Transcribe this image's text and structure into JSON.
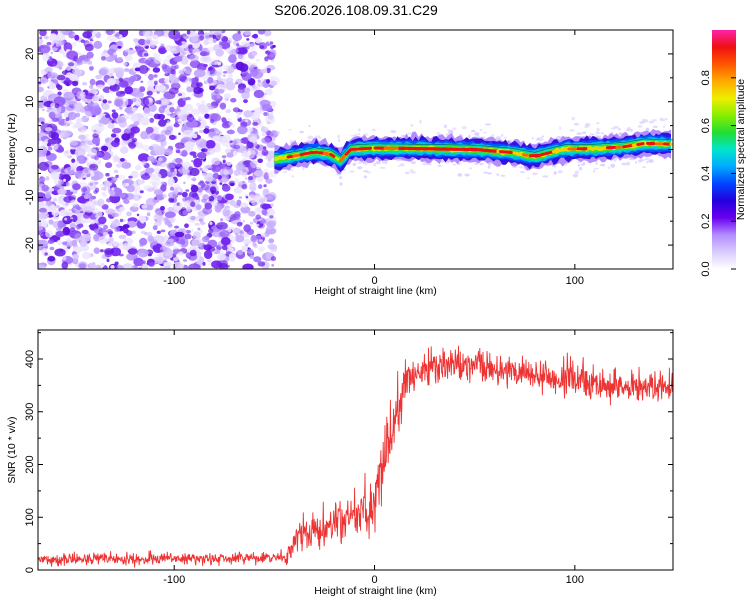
{
  "page_title": "S206.2026.108.09.31.C29",
  "colors": {
    "snr_line": "#ee3333",
    "noise_points": "#7a22ee",
    "frame": "#000000"
  },
  "chart_data": [
    {
      "id": "spectrogram",
      "type": "heatmap",
      "title": "S206.2026.108.09.31.C29",
      "xlabel": "Height of straight line (km)",
      "ylabel": "Frequency (Hz)",
      "xlim": [
        -168,
        149
      ],
      "ylim": [
        -25,
        25
      ],
      "xticks": [
        -100,
        0,
        100
      ],
      "xtick_labels": [
        "-100",
        "0",
        "100"
      ],
      "yticks": [
        -20,
        -10,
        0,
        10,
        20
      ],
      "ytick_labels": [
        "-20",
        "-10",
        "0",
        "10",
        "20"
      ],
      "noise_region_x": [
        -168,
        -50
      ],
      "signal_start_x": -50,
      "signal_center_frequency": [
        {
          "x": -50,
          "f": -2
        },
        {
          "x": -45,
          "f": -1.7
        },
        {
          "x": -38,
          "f": -1.2
        },
        {
          "x": -30,
          "f": -0.5
        },
        {
          "x": -22,
          "f": -1.0
        },
        {
          "x": -17,
          "f": -2.3
        },
        {
          "x": -12,
          "f": 0
        },
        {
          "x": 0,
          "f": 0.3
        },
        {
          "x": 20,
          "f": 0.2
        },
        {
          "x": 50,
          "f": 0
        },
        {
          "x": 68,
          "f": -0.6
        },
        {
          "x": 80,
          "f": -1.5
        },
        {
          "x": 86,
          "f": -0.8
        },
        {
          "x": 95,
          "f": 0.1
        },
        {
          "x": 110,
          "f": 0.2
        },
        {
          "x": 125,
          "f": 0.6
        },
        {
          "x": 135,
          "f": 1.3
        },
        {
          "x": 149,
          "f": 1.1
        }
      ],
      "colorbar": {
        "label": "Normalized spectral amplitude",
        "range": [
          0.0,
          1.0
        ],
        "ticks": [
          0.0,
          0.2,
          0.4,
          0.6,
          0.8
        ],
        "tick_labels": [
          "0.0",
          "0.2",
          "0.4",
          "0.6",
          "0.8"
        ],
        "colormap": [
          "#ffffff",
          "#d9ccff",
          "#b38cff",
          "#6a00ee",
          "#2200dd",
          "#0044ff",
          "#00aaff",
          "#00e5cc",
          "#22dd33",
          "#88ee00",
          "#eeee00",
          "#ffaa00",
          "#ff5500",
          "#ee1111",
          "#ff22aa"
        ]
      }
    },
    {
      "id": "snr",
      "type": "line",
      "xlabel": "Height of straight line (km)",
      "ylabel": "SNR (10 * v/v)",
      "xlim": [
        -168,
        149
      ],
      "ylim": [
        0,
        455
      ],
      "xticks": [
        -100,
        0,
        100
      ],
      "xtick_labels": [
        "-100",
        "0",
        "100"
      ],
      "yticks": [
        0,
        100,
        200,
        300,
        400
      ],
      "ytick_labels": [
        "0",
        "100",
        "200",
        "300",
        "400"
      ],
      "series": [
        {
          "name": "SNR",
          "envelope": [
            {
              "x": -168,
              "y": 20,
              "spread": 12
            },
            {
              "x": -44,
              "y": 22,
              "spread": 14
            },
            {
              "x": -40,
              "y": 60,
              "spread": 35
            },
            {
              "x": -25,
              "y": 75,
              "spread": 40
            },
            {
              "x": -12,
              "y": 100,
              "spread": 50
            },
            {
              "x": 0,
              "y": 120,
              "spread": 55
            },
            {
              "x": 8,
              "y": 270,
              "spread": 70
            },
            {
              "x": 15,
              "y": 350,
              "spread": 60
            },
            {
              "x": 25,
              "y": 385,
              "spread": 40
            },
            {
              "x": 40,
              "y": 385,
              "spread": 35
            },
            {
              "x": 70,
              "y": 375,
              "spread": 35
            },
            {
              "x": 100,
              "y": 360,
              "spread": 35
            },
            {
              "x": 130,
              "y": 345,
              "spread": 35
            },
            {
              "x": 149,
              "y": 350,
              "spread": 30
            }
          ]
        }
      ]
    }
  ]
}
